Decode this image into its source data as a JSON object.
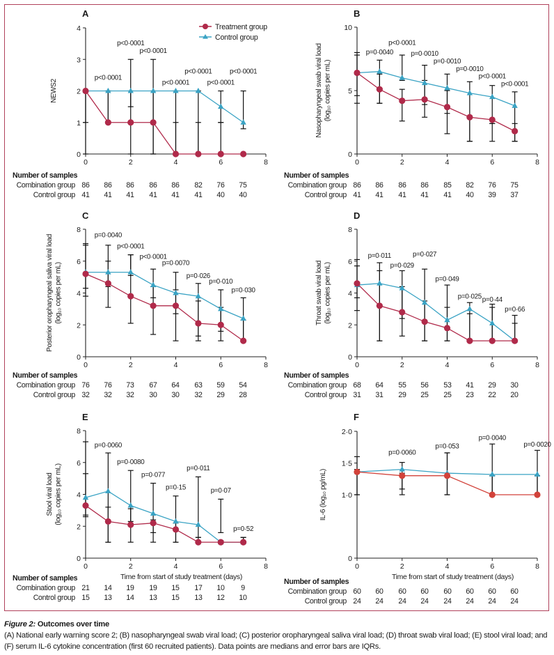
{
  "figure": {
    "caption_title_italic": "Figure 2:",
    "caption_title_bold": " Outcomes over time",
    "caption_text": "(A) National early warning score 2; (B) nasopharyngeal swab viral load; (C) posterior oropharyngeal saliva viral load; (D) throat swab viral load; (E) stool viral load; and (F) serum IL-6 cytokine concentration (first 60 recruited patients). Data points are medians and error bars are IQRs.",
    "legend": [
      {
        "name": "Treatment group",
        "marker": "circle",
        "color": "#b02a4a"
      },
      {
        "name": "Control group",
        "marker": "triangle",
        "color": "#3aa3c4"
      }
    ],
    "samples_title": "Number of samples",
    "samples_row_labels": [
      "Combination group",
      "Control group"
    ],
    "colors": {
      "treatment": "#b02a4a",
      "control": "#3aa3c4",
      "error_bar": "#111111",
      "frame": "#b0405a",
      "treatment_F": "#d2423a"
    }
  },
  "chart_data": [
    {
      "panel": "A",
      "type": "line",
      "title": "A",
      "ylabel": [
        "NEWS2"
      ],
      "xlabel": "",
      "xlim": [
        0,
        8
      ],
      "xticks": [
        0,
        2,
        4,
        6,
        8
      ],
      "ylim": [
        0,
        4
      ],
      "yticks": [
        "0",
        "1",
        "2",
        "3",
        "4"
      ],
      "ytick_values": [
        0,
        1,
        2,
        3,
        4
      ],
      "x": [
        0,
        1,
        2,
        3,
        4,
        5,
        6,
        7
      ],
      "series": [
        {
          "name": "Treatment group",
          "values": [
            2,
            1,
            1,
            1,
            0,
            0,
            0,
            0
          ],
          "iqr": [
            [
              0,
              2
            ],
            [
              1,
              2
            ],
            [
              0,
              2
            ],
            [
              0,
              2
            ],
            [
              0,
              1
            ],
            [
              0,
              1
            ],
            [
              0,
              1
            ],
            [
              0,
              0
            ]
          ]
        },
        {
          "name": "Control group",
          "values": [
            2,
            2,
            2,
            2,
            2,
            2,
            1.5,
            1
          ],
          "iqr": [
            [
              1,
              2
            ],
            [
              1,
              2
            ],
            [
              1.5,
              3
            ],
            [
              0,
              3
            ],
            [
              0,
              2
            ],
            [
              0,
              2
            ],
            [
              1,
              2
            ],
            [
              0.8,
              2
            ]
          ]
        }
      ],
      "pvalues": [
        {
          "x": 1,
          "label": "p<0·0001",
          "y": 2.35
        },
        {
          "x": 2,
          "label": "p<0·0001",
          "y": 3.45
        },
        {
          "x": 3,
          "label": "p<0·0001",
          "y": 3.2
        },
        {
          "x": 4,
          "label": "p<0·0001",
          "y": 2.2
        },
        {
          "x": 5,
          "label": "p<0·0001",
          "y": 2.55
        },
        {
          "x": 6,
          "label": "p<0·0001",
          "y": 2.2
        },
        {
          "x": 7,
          "label": "p<0·0001",
          "y": 2.55
        }
      ],
      "samples": {
        "combination": [
          "86",
          "86",
          "86",
          "86",
          "86",
          "82",
          "76",
          "75"
        ],
        "control": [
          "41",
          "41",
          "41",
          "41",
          "41",
          "41",
          "40",
          "40"
        ]
      },
      "legend_position": "top-right"
    },
    {
      "panel": "B",
      "type": "line",
      "title": "B",
      "ylabel": [
        "Nasopharyngeal swab viral load",
        "(log₁₀ copies per mL)"
      ],
      "xlabel": "",
      "xlim": [
        0,
        8
      ],
      "xticks": [
        0,
        2,
        4,
        6,
        8
      ],
      "ylim": [
        0,
        10
      ],
      "yticks": [
        "0",
        "5",
        "10"
      ],
      "ytick_values": [
        0,
        5,
        10
      ],
      "x": [
        0,
        1,
        2,
        3,
        4,
        5,
        6,
        7
      ],
      "series": [
        {
          "name": "Treatment group",
          "values": [
            6.4,
            5.1,
            4.2,
            4.3,
            3.7,
            2.9,
            2.7,
            1.8
          ],
          "iqr": [
            [
              4.6,
              8.0
            ],
            [
              4.0,
              6.3
            ],
            [
              2.6,
              5.1
            ],
            [
              2.9,
              5.8
            ],
            [
              1.6,
              5.0
            ],
            [
              1.0,
              3.0
            ],
            [
              1.0,
              2.4
            ],
            [
              1.0,
              2.4
            ]
          ]
        },
        {
          "name": "Control group",
          "values": [
            6.4,
            6.5,
            6.0,
            5.6,
            5.2,
            4.8,
            4.5,
            3.8
          ],
          "iqr": [
            [
              4.0,
              7.8
            ],
            [
              4.0,
              7.4
            ],
            [
              5.8,
              7.8
            ],
            [
              3.9,
              7.0
            ],
            [
              3.2,
              6.3
            ],
            [
              1.0,
              5.7
            ],
            [
              2.4,
              5.4
            ],
            [
              1.0,
              4.9
            ]
          ]
        }
      ],
      "pvalues": [
        {
          "x": 1,
          "label": "p=0·0040",
          "y": 7.85
        },
        {
          "x": 2,
          "label": "p<0·0001",
          "y": 8.6
        },
        {
          "x": 3,
          "label": "p=0·0010",
          "y": 7.75
        },
        {
          "x": 4,
          "label": "p=0·0010",
          "y": 7.15
        },
        {
          "x": 5,
          "label": "p=0·0010",
          "y": 6.55
        },
        {
          "x": 6,
          "label": "p<0·0001",
          "y": 5.95
        },
        {
          "x": 7,
          "label": "p<0·0001",
          "y": 5.35
        }
      ],
      "samples": {
        "combination": [
          "86",
          "86",
          "86",
          "86",
          "85",
          "82",
          "76",
          "75"
        ],
        "control": [
          "41",
          "41",
          "41",
          "41",
          "41",
          "40",
          "39",
          "37"
        ]
      }
    },
    {
      "panel": "C",
      "type": "line",
      "title": "C",
      "ylabel": [
        "Posterior oropharyngeal saliva viral load",
        "(log₁₀ copies per mL)"
      ],
      "xlabel": "",
      "xlim": [
        0,
        8
      ],
      "xticks": [
        0,
        2,
        4,
        6,
        8
      ],
      "ylim": [
        0,
        8
      ],
      "yticks": [
        "0",
        "2",
        "4",
        "6",
        "8"
      ],
      "ytick_values": [
        0,
        2,
        4,
        6,
        8
      ],
      "x": [
        0,
        1,
        2,
        3,
        4,
        5,
        6,
        7
      ],
      "series": [
        {
          "name": "Treatment group",
          "values": [
            5.2,
            4.6,
            3.8,
            3.2,
            3.2,
            2.1,
            2.0,
            1.0
          ],
          "iqr": [
            [
              3.8,
              7.1
            ],
            [
              3.1,
              6.0
            ],
            [
              2.1,
              6.4
            ],
            [
              1.4,
              4.4
            ],
            [
              1.0,
              4.2
            ],
            [
              1.0,
              3.5
            ],
            [
              1.0,
              3.1
            ],
            [
              1.0,
              2.3
            ]
          ]
        },
        {
          "name": "Control group",
          "values": [
            5.3,
            5.3,
            5.3,
            4.5,
            4.0,
            3.8,
            3.0,
            2.4
          ],
          "iqr": [
            [
              4.3,
              7.0
            ],
            [
              4.4,
              7.0
            ],
            [
              5.1,
              6.4
            ],
            [
              3.7,
              5.5
            ],
            [
              2.7,
              5.3
            ],
            [
              1.3,
              4.6
            ],
            [
              1.6,
              4.2
            ],
            [
              1.0,
              3.7
            ]
          ]
        }
      ],
      "pvalues": [
        {
          "x": 1,
          "label": "p=0·0040",
          "y": 7.5
        },
        {
          "x": 2,
          "label": "p<0·0001",
          "y": 6.8
        },
        {
          "x": 3,
          "label": "p<0·0001",
          "y": 6.15
        },
        {
          "x": 4,
          "label": "p=0·0070",
          "y": 5.75
        },
        {
          "x": 5,
          "label": "p=0·026",
          "y": 4.95
        },
        {
          "x": 6,
          "label": "p=0·010",
          "y": 4.6
        },
        {
          "x": 7,
          "label": "p=0·030",
          "y": 4.05
        }
      ],
      "samples": {
        "combination": [
          "76",
          "76",
          "73",
          "67",
          "64",
          "63",
          "59",
          "54"
        ],
        "control": [
          "32",
          "32",
          "32",
          "30",
          "30",
          "32",
          "29",
          "28"
        ]
      }
    },
    {
      "panel": "D",
      "type": "line",
      "title": "D",
      "ylabel": [
        "Throat swab viral load",
        "(log₁₀ copies per mL)"
      ],
      "xlabel": "",
      "xlim": [
        0,
        8
      ],
      "xticks": [
        0,
        2,
        4,
        6,
        8
      ],
      "ylim": [
        0,
        8
      ],
      "yticks": [
        "0",
        "2",
        "4",
        "6",
        "8"
      ],
      "ytick_values": [
        0,
        2,
        4,
        6,
        8
      ],
      "x": [
        0,
        1,
        2,
        3,
        4,
        5,
        6,
        7
      ],
      "series": [
        {
          "name": "Treatment group",
          "values": [
            4.6,
            3.2,
            2.8,
            2.2,
            1.8,
            1.0,
            1.0,
            1.0
          ],
          "iqr": [
            [
              2.9,
              6.1
            ],
            [
              1.0,
              5.4
            ],
            [
              1.3,
              4.4
            ],
            [
              1.0,
              3.5
            ],
            [
              1.0,
              3.1
            ],
            [
              1.0,
              2.7
            ],
            [
              1.0,
              3.1
            ],
            [
              1.0,
              2.1
            ]
          ]
        },
        {
          "name": "Control group",
          "values": [
            4.5,
            4.6,
            4.3,
            3.4,
            2.3,
            3.0,
            2.1,
            1.0
          ],
          "iqr": [
            [
              3.7,
              5.7
            ],
            [
              1.0,
              5.9
            ],
            [
              2.4,
              5.4
            ],
            [
              1.0,
              5.5
            ],
            [
              1.0,
              4.5
            ],
            [
              1.0,
              3.4
            ],
            [
              1.0,
              3.3
            ],
            [
              1.0,
              2.6
            ]
          ]
        }
      ],
      "pvalues": [
        {
          "x": 1,
          "label": "p=0·011",
          "y": 6.2
        },
        {
          "x": 2,
          "label": "p=0·029",
          "y": 5.6
        },
        {
          "x": 3,
          "label": "p=0·027",
          "y": 6.3
        },
        {
          "x": 4,
          "label": "p=0·049",
          "y": 4.75
        },
        {
          "x": 5,
          "label": "p=0·025",
          "y": 3.65
        },
        {
          "x": 6,
          "label": "p=0·44",
          "y": 3.45
        },
        {
          "x": 7,
          "label": "p=0·66",
          "y": 2.85
        }
      ],
      "samples": {
        "combination": [
          "68",
          "64",
          "55",
          "56",
          "53",
          "41",
          "29",
          "30"
        ],
        "control": [
          "31",
          "31",
          "29",
          "25",
          "25",
          "23",
          "22",
          "20"
        ]
      }
    },
    {
      "panel": "E",
      "type": "line",
      "title": "E",
      "ylabel": [
        "Stool viral load",
        "(log₁₀ copies per mL)"
      ],
      "xlabel": "Time from start of study treatment (days)",
      "xlim": [
        0,
        8
      ],
      "xticks": [
        0,
        2,
        4,
        6,
        8
      ],
      "ylim": [
        0,
        8
      ],
      "yticks": [
        "0",
        "2",
        "4",
        "6",
        "8"
      ],
      "ytick_values": [
        0,
        2,
        4,
        6,
        8
      ],
      "x": [
        0,
        1,
        2,
        3,
        4,
        5,
        6,
        7
      ],
      "series": [
        {
          "name": "Treatment group",
          "values": [
            3.3,
            2.3,
            2.1,
            2.2,
            1.8,
            1.0,
            1.0,
            1.0
          ],
          "iqr": [
            [
              2.6,
              5.3
            ],
            [
              1.0,
              3.2
            ],
            [
              1.0,
              3.1
            ],
            [
              1.0,
              2.4
            ],
            [
              1.0,
              2.2
            ],
            [
              1.0,
              1.3
            ],
            [
              1.0,
              1.1
            ],
            [
              1.0,
              1.3
            ]
          ]
        },
        {
          "name": "Control group",
          "values": [
            3.8,
            4.2,
            3.3,
            2.8,
            2.3,
            2.1,
            1.0,
            1.0
          ],
          "iqr": [
            [
              2.7,
              7.3
            ],
            [
              1.0,
              6.6
            ],
            [
              2.3,
              5.5
            ],
            [
              1.6,
              4.7
            ],
            [
              1.0,
              3.9
            ],
            [
              1.3,
              5.1
            ],
            [
              1.6,
              3.7
            ],
            [
              1.0,
              1.3
            ]
          ]
        }
      ],
      "pvalues": [
        {
          "x": 1,
          "label": "p=0·0060",
          "y": 6.95
        },
        {
          "x": 2,
          "label": "p=0·0080",
          "y": 5.9
        },
        {
          "x": 3,
          "label": "p=0·077",
          "y": 5.1
        },
        {
          "x": 4,
          "label": "p=0·15",
          "y": 4.3
        },
        {
          "x": 5,
          "label": "p=0·011",
          "y": 5.5
        },
        {
          "x": 6,
          "label": "p=0·07",
          "y": 4.1
        },
        {
          "x": 7,
          "label": "p=0·52",
          "y": 1.7
        }
      ],
      "samples": {
        "combination": [
          "21",
          "14",
          "19",
          "19",
          "15",
          "17",
          "10",
          "9"
        ],
        "control": [
          "15",
          "13",
          "14",
          "13",
          "15",
          "13",
          "12",
          "10"
        ]
      }
    },
    {
      "panel": "F",
      "type": "line",
      "title": "F",
      "ylabel": [
        "IL-6 (log₁₀ pg/mL)"
      ],
      "xlabel": "Time from start of study treatment (days)",
      "xlim": [
        0,
        8
      ],
      "xticks": [
        0,
        2,
        4,
        6,
        8
      ],
      "ylim": [
        0,
        2
      ],
      "yticks": [
        "0",
        "1·0",
        "1·5",
        "2·0"
      ],
      "ytick_values": [
        0,
        1.0,
        1.5,
        2.0
      ],
      "ybreak": true,
      "x": [
        0,
        2,
        4,
        6,
        8
      ],
      "series": [
        {
          "name": "Treatment group",
          "values": [
            1.36,
            1.3,
            1.3,
            1.0,
            1.0
          ],
          "iqr": [
            [
              1.0,
              1.4
            ],
            [
              1.0,
              1.34
            ],
            [
              1.0,
              1.66
            ],
            [
              1.0,
              1.3
            ],
            [
              1.0,
              1.3
            ]
          ]
        },
        {
          "name": "Control group",
          "values": [
            1.36,
            1.4,
            1.34,
            1.32,
            1.32
          ],
          "iqr": [
            [
              1.0,
              1.6
            ],
            [
              1.09,
              1.51
            ],
            [
              1.0,
              1.66
            ],
            [
              1.0,
              1.8
            ],
            [
              1.0,
              1.7
            ]
          ]
        }
      ],
      "pvalues": [
        {
          "x": 2,
          "label": "p=0·0060",
          "y": 1.63
        },
        {
          "x": 4,
          "label": "p=0·053",
          "y": 1.73
        },
        {
          "x": 6,
          "label": "p=0·0040",
          "y": 1.86
        },
        {
          "x": 8,
          "label": "p=0·0020",
          "y": 1.76
        }
      ],
      "samples": {
        "combination": [
          "60",
          "60",
          "60",
          "60",
          "60",
          "60",
          "60",
          "60"
        ],
        "control": [
          "24",
          "24",
          "24",
          "24",
          "24",
          "24",
          "24",
          "24"
        ]
      }
    }
  ]
}
